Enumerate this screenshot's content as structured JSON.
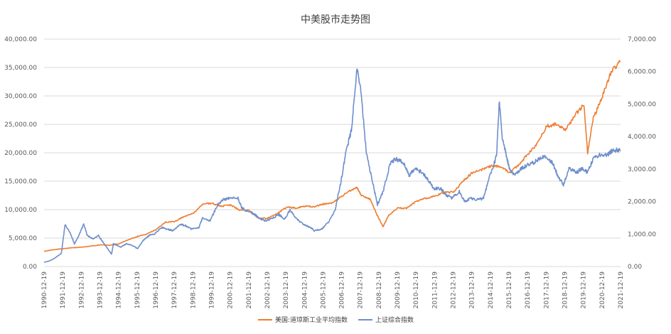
{
  "chart_data": {
    "type": "line",
    "title": "中美股市走势图",
    "x_tick_labels": [
      "1990-12-19",
      "1991-12-19",
      "1992-12-19",
      "1993-12-19",
      "1994-12-19",
      "1995-12-19",
      "1996-12-19",
      "1997-12-19",
      "1998-12-19",
      "1999-12-19",
      "2000-12-19",
      "2001-12-19",
      "2002-12-19",
      "2003-12-19",
      "2004-12-19",
      "2005-12-19",
      "2006-12-19",
      "2007-12-19",
      "2008-12-19",
      "2009-12-19",
      "2010-12-19",
      "2011-12-19",
      "2012-12-19",
      "2013-12-19",
      "2014-12-19",
      "2015-12-19",
      "2016-12-19",
      "2017-12-19",
      "2018-12-19",
      "2019-12-19",
      "2020-12-19",
      "2021-12-19"
    ],
    "y_left": {
      "min": 0,
      "max": 40000,
      "step": 5000,
      "tick_labels": [
        "0.00",
        "5,000.00",
        "10,000.00",
        "15,000.00",
        "20,000.00",
        "25,000.00",
        "30,000.00",
        "35,000.00",
        "40,000.00"
      ]
    },
    "y_right": {
      "min": 0,
      "max": 7000,
      "step": 1000,
      "tick_labels": [
        "0.00",
        "1,000.00",
        "2,000.00",
        "3,000.00",
        "4,000.00",
        "5,000.00",
        "6,000.00",
        "7,000.00"
      ]
    },
    "grid": "horizontal",
    "legend_position": "bottom",
    "series": [
      {
        "name": "美国:道琼斯工业平均指数",
        "axis": "left",
        "color": "#ED7D31",
        "x": [
          1990.97,
          1991.5,
          1992.0,
          1992.5,
          1993.0,
          1993.5,
          1994.0,
          1994.5,
          1995.0,
          1995.5,
          1996.0,
          1996.5,
          1997.0,
          1997.5,
          1998.0,
          1998.5,
          1999.0,
          1999.5,
          2000.0,
          2000.5,
          2001.0,
          2001.5,
          2002.0,
          2002.5,
          2003.0,
          2003.5,
          2004.0,
          2004.5,
          2005.0,
          2005.5,
          2006.0,
          2006.5,
          2007.0,
          2007.5,
          2007.8,
          2008.0,
          2008.5,
          2008.9,
          2009.2,
          2009.5,
          2010.0,
          2010.5,
          2011.0,
          2011.5,
          2012.0,
          2012.5,
          2013.0,
          2013.5,
          2014.0,
          2014.5,
          2015.0,
          2015.5,
          2016.0,
          2016.5,
          2017.0,
          2017.5,
          2018.0,
          2018.5,
          2019.0,
          2019.5,
          2020.0,
          2020.2,
          2020.5,
          2021.0,
          2021.5,
          2021.97
        ],
        "y": [
          2700,
          2950,
          3150,
          3300,
          3400,
          3600,
          3800,
          3750,
          4000,
          4700,
          5300,
          5700,
          6500,
          7800,
          7900,
          8800,
          9300,
          11000,
          11100,
          10600,
          10800,
          9900,
          9900,
          8500,
          8500,
          9300,
          10400,
          10300,
          10600,
          10500,
          11000,
          11200,
          12400,
          13500,
          13900,
          12600,
          11800,
          8900,
          7000,
          9000,
          10300,
          10300,
          11500,
          12000,
          12400,
          13000,
          13100,
          15000,
          16500,
          17000,
          17700,
          17600,
          16500,
          17900,
          19800,
          21600,
          24700,
          25000,
          24000,
          26500,
          28500,
          20000,
          26000,
          30000,
          34500,
          36000
        ]
      },
      {
        "name": "上证综合指数",
        "axis": "right",
        "color": "#6E8FCB",
        "x": [
          1990.97,
          1991.3,
          1991.6,
          1991.9,
          1992.1,
          1992.4,
          1992.6,
          1992.8,
          1993.1,
          1993.3,
          1993.6,
          1993.9,
          1994.2,
          1994.6,
          1994.7,
          1995.1,
          1995.4,
          1995.7,
          1996.0,
          1996.3,
          1996.6,
          1996.9,
          1997.3,
          1997.6,
          1997.9,
          1998.3,
          1998.6,
          1998.9,
          1999.3,
          1999.5,
          1999.9,
          2000.3,
          2000.6,
          2000.9,
          2001.4,
          2001.6,
          2001.9,
          2002.3,
          2002.5,
          2002.9,
          2003.3,
          2003.6,
          2003.9,
          2004.2,
          2004.5,
          2004.9,
          2005.3,
          2005.5,
          2005.9,
          2006.3,
          2006.6,
          2006.9,
          2007.2,
          2007.5,
          2007.8,
          2008.0,
          2008.3,
          2008.6,
          2008.9,
          2009.2,
          2009.6,
          2009.9,
          2010.3,
          2010.6,
          2010.9,
          2011.3,
          2011.6,
          2011.9,
          2012.3,
          2012.6,
          2012.9,
          2013.3,
          2013.6,
          2013.9,
          2014.3,
          2014.6,
          2014.9,
          2015.3,
          2015.45,
          2015.6,
          2015.8,
          2016.0,
          2016.3,
          2016.6,
          2016.9,
          2017.3,
          2017.6,
          2017.9,
          2018.3,
          2018.6,
          2018.9,
          2019.2,
          2019.6,
          2019.9,
          2020.2,
          2020.5,
          2020.9,
          2021.3,
          2021.6,
          2021.97
        ],
        "y": [
          128,
          180,
          280,
          410,
          1300,
          1000,
          700,
          900,
          1300,
          950,
          850,
          950,
          700,
          380,
          700,
          600,
          700,
          650,
          550,
          800,
          950,
          1000,
          1200,
          1150,
          1100,
          1300,
          1250,
          1150,
          1200,
          1500,
          1400,
          1900,
          2050,
          2100,
          2100,
          1800,
          1700,
          1600,
          1500,
          1400,
          1500,
          1600,
          1450,
          1750,
          1500,
          1300,
          1200,
          1100,
          1150,
          1400,
          1700,
          2500,
          3500,
          4200,
          6100,
          5400,
          3500,
          2700,
          1900,
          2300,
          3200,
          3300,
          3200,
          2800,
          3000,
          2900,
          2700,
          2400,
          2400,
          2200,
          2100,
          2300,
          2000,
          2100,
          2050,
          2100,
          2700,
          3400,
          5100,
          4000,
          3500,
          3000,
          2800,
          3000,
          3100,
          3200,
          3300,
          3400,
          3200,
          2800,
          2500,
          3000,
          2900,
          3000,
          2900,
          3300,
          3450,
          3450,
          3600,
          3550
        ]
      }
    ]
  }
}
